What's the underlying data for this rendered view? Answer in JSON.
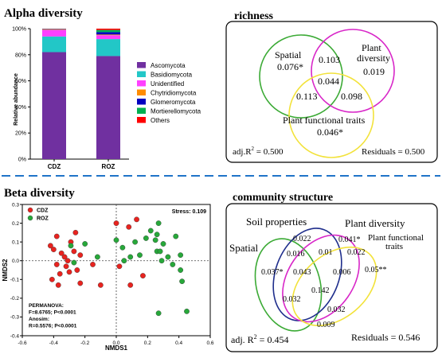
{
  "panels": {
    "alpha": {
      "title": "Alpha diversity",
      "chart_data": {
        "type": "bar",
        "stacked": true,
        "categories": [
          "CDZ",
          "ROZ"
        ],
        "ylabel": "Relative abundance",
        "ylim": [
          0,
          100
        ],
        "yticks": [
          "0%",
          "20%",
          "40%",
          "60%",
          "80%",
          "100%"
        ],
        "series": [
          {
            "name": "Ascomycota",
            "color": "#7030A0",
            "values": [
              82,
              79
            ]
          },
          {
            "name": "Basidiomycota",
            "color": "#22C7C7",
            "values": [
              12,
              13
            ]
          },
          {
            "name": "Unidentified",
            "color": "#FF40FF",
            "values": [
              5,
              3
            ]
          },
          {
            "name": "Chytridiomycota",
            "color": "#FF8C00",
            "values": [
              0.3,
              0.5
            ]
          },
          {
            "name": "Glomeromycota",
            "color": "#0000C0",
            "values": [
              0.3,
              1.8
            ]
          },
          {
            "name": "Mortierellomycota",
            "color": "#00B050",
            "values": [
              0.2,
              1.7
            ]
          },
          {
            "name": "Others",
            "color": "#FF0000",
            "values": [
              0.2,
              1
            ]
          }
        ]
      }
    },
    "richness": {
      "title": "richness",
      "sets": {
        "spatial": "Spatial",
        "plant": "Plant",
        "plant2": "diversity",
        "traits": "Plant functional traits"
      },
      "values": {
        "spatial_only": "0.076*",
        "plant_only": "0.019",
        "traits_only": "0.046*",
        "spatial_plant": "0.103",
        "spatial_traits": "0.113",
        "plant_traits": "0.098",
        "all": "0.044"
      },
      "adj_label": "adj.R",
      "adj_sup": "2",
      "adj_value": " = 0.500",
      "residuals": "Residuals = 0.500"
    },
    "beta": {
      "title": "Beta diversity",
      "chart_data": {
        "type": "scatter",
        "xlabel": "NMDS1",
        "ylabel": "NMDS2",
        "xlim": [
          -0.6,
          0.6
        ],
        "ylim": [
          -0.4,
          0.3
        ],
        "xticks": [
          "-0.6",
          "-0.4",
          "-0.2",
          "0.0",
          "0.2",
          "0.4",
          "0.6"
        ],
        "yticks": [
          "-0.4",
          "-0.3",
          "-0.2",
          "-0.1",
          "0.0",
          "0.1",
          "0.2",
          "0.3"
        ],
        "stress": "Stress: 0.109",
        "stats": [
          "PERMANOVA:",
          "F=8.6765; P<0.0001",
          "Anosim:",
          "R=0.5576; P<0.0001"
        ],
        "series": [
          {
            "name": "CDZ",
            "color": "#E8231F",
            "points": [
              [
                -0.38,
                0.13
              ],
              [
                -0.42,
                0.08
              ],
              [
                -0.4,
                0.06
              ],
              [
                -0.35,
                0.04
              ],
              [
                -0.29,
                0.1
              ],
              [
                -0.26,
                0.15
              ],
              [
                -0.33,
                0.02
              ],
              [
                -0.31,
                0.0
              ],
              [
                -0.27,
                0.05
              ],
              [
                -0.23,
                0.03
              ],
              [
                -0.38,
                -0.02
              ],
              [
                -0.32,
                -0.03
              ],
              [
                -0.36,
                -0.07
              ],
              [
                -0.3,
                -0.06
              ],
              [
                -0.25,
                -0.05
              ],
              [
                -0.37,
                -0.13
              ],
              [
                -0.41,
                -0.1
              ],
              [
                -0.23,
                -0.12
              ],
              [
                -0.15,
                -0.02
              ],
              [
                -0.1,
                -0.13
              ],
              [
                0.0,
                0.2
              ],
              [
                0.08,
                0.18
              ],
              [
                0.13,
                0.22
              ],
              [
                0.02,
                -0.03
              ],
              [
                0.09,
                -0.13
              ],
              [
                0.17,
                -0.08
              ]
            ]
          },
          {
            "name": "ROZ",
            "color": "#27A83A",
            "points": [
              [
                -0.29,
                0.08
              ],
              [
                -0.2,
                0.09
              ],
              [
                -0.27,
                -0.01
              ],
              [
                -0.12,
                0.02
              ],
              [
                0.0,
                0.11
              ],
              [
                0.04,
                0.07
              ],
              [
                0.05,
                0.0
              ],
              [
                0.09,
                0.02
              ],
              [
                0.12,
                0.1
              ],
              [
                0.15,
                0.03
              ],
              [
                0.19,
                0.12
              ],
              [
                0.22,
                0.16
              ],
              [
                0.25,
                0.11
              ],
              [
                0.27,
                0.2
              ],
              [
                0.26,
                0.14
              ],
              [
                0.3,
                0.09
              ],
              [
                0.33,
                0.02
              ],
              [
                0.38,
                0.13
              ],
              [
                0.41,
                0.03
              ],
              [
                0.26,
                0.05
              ],
              [
                0.29,
                0.0
              ],
              [
                0.36,
                -0.02
              ],
              [
                0.41,
                -0.05
              ],
              [
                0.42,
                -0.11
              ],
              [
                0.27,
                -0.28
              ],
              [
                0.45,
                -0.27
              ],
              [
                0.28,
                0.05
              ]
            ]
          }
        ]
      }
    },
    "community": {
      "title": "community structure",
      "sets": {
        "soil": "Soil properties",
        "plant": "Plant diversity",
        "traits": "Plant functional",
        "traits2": "traits",
        "spatial": "Spatial"
      },
      "values": {
        "v022a": "0.022",
        "v041": "0.041*",
        "v016": "0.016",
        "v01": "0.01",
        "v022b": "0.022",
        "v037": "0.037*",
        "v043": "0.043",
        "v006": "0.006",
        "v05": "0.05**",
        "v142": "0.142",
        "v032a": "0.032",
        "v032b": "0.032",
        "v009": "0.009"
      },
      "adj_label": "adj. R",
      "adj_sup": "2",
      "adj_value": " = 0.454",
      "residuals": "Residuals = 0.546"
    }
  }
}
